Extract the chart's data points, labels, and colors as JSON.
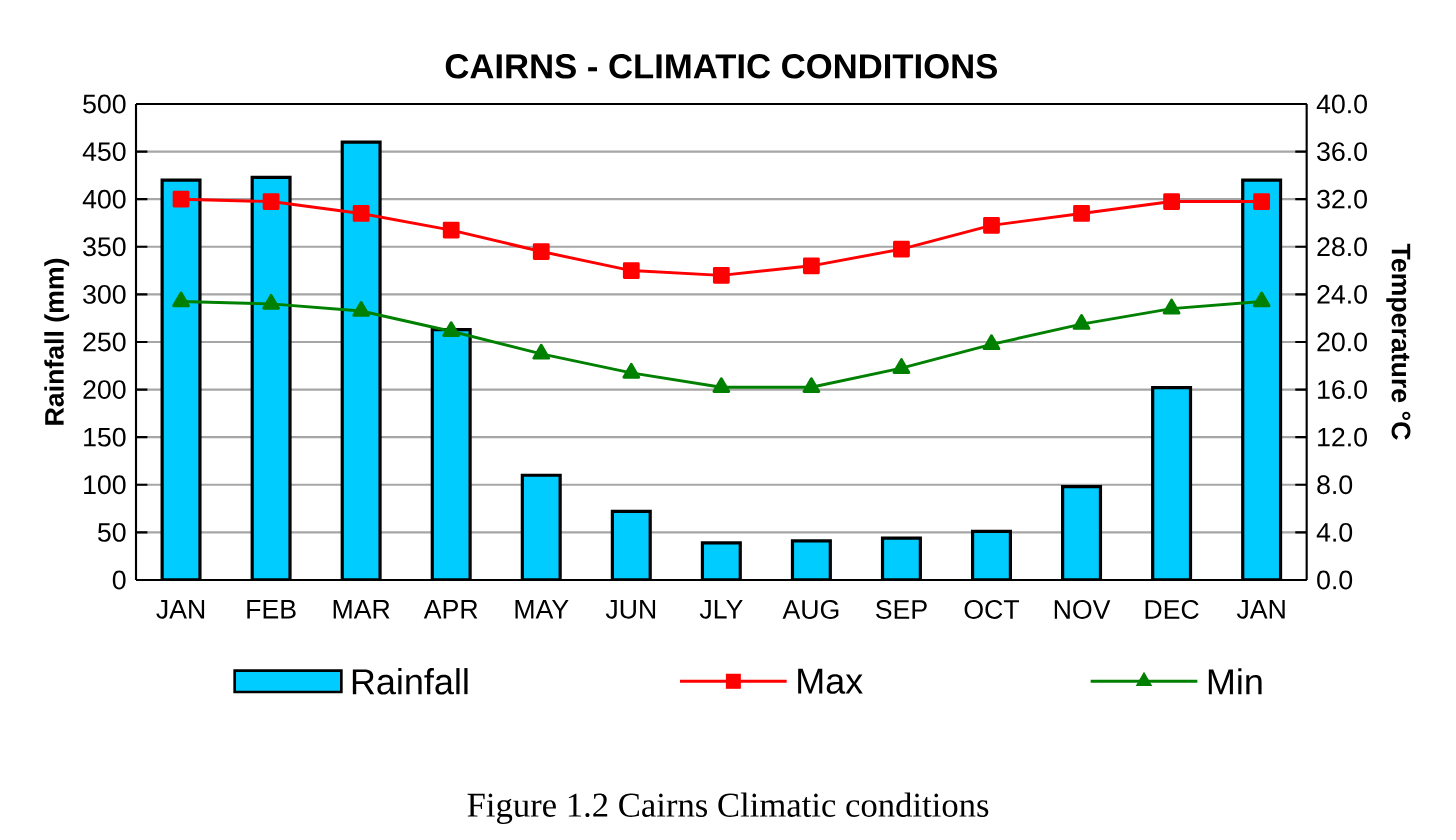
{
  "chart_data": {
    "type": "bar",
    "title": "CAIRNS - CLIMATIC CONDITIONS",
    "categories": [
      "JAN",
      "FEB",
      "MAR",
      "APR",
      "MAY",
      "JUN",
      "JLY",
      "AUG",
      "SEP",
      "OCT",
      "NOV",
      "DEC",
      "JAN"
    ],
    "series": [
      {
        "name": "Rainfall",
        "color": "#00ccff",
        "values": [
          420,
          423,
          460,
          263,
          110,
          72,
          39,
          41,
          44,
          51,
          98,
          202,
          420
        ]
      },
      {
        "name": "Max",
        "type": "line",
        "axis": "y2",
        "color": "#ff0000",
        "marker": "square",
        "values": [
          32.0,
          31.8,
          30.8,
          29.4,
          27.6,
          26.0,
          25.6,
          26.4,
          27.8,
          29.8,
          30.8,
          31.8,
          31.8
        ]
      },
      {
        "name": "Min",
        "type": "line",
        "axis": "y2",
        "color": "#008000",
        "marker": "triangle",
        "values": [
          23.4,
          23.2,
          22.6,
          20.9,
          19.0,
          17.4,
          16.2,
          16.2,
          17.8,
          19.8,
          21.5,
          22.8,
          23.4
        ]
      }
    ],
    "ylabel": "Rainfall (mm)",
    "y2label": "Temperature  °C",
    "ylim": [
      0,
      500
    ],
    "yticks": [
      0,
      50,
      100,
      150,
      200,
      250,
      300,
      350,
      400,
      450,
      500
    ],
    "y2lim": [
      0,
      40
    ],
    "y2ticks": [
      {
        "value": 0,
        "label": "0.0"
      },
      {
        "value": 4,
        "label": "4.0"
      },
      {
        "value": 8,
        "label": "8.0"
      },
      {
        "value": 12,
        "label": "12.0"
      },
      {
        "value": 16,
        "label": "16.0"
      },
      {
        "value": 20,
        "label": "20.0"
      },
      {
        "value": 24,
        "label": "24.0"
      },
      {
        "value": 28,
        "label": "28.0"
      },
      {
        "value": 32,
        "label": "32.0"
      },
      {
        "value": 36,
        "label": "36.0"
      },
      {
        "value": 40,
        "label": "40.0"
      }
    ],
    "grid": "y",
    "legend": "bottom",
    "annotations": [
      "Figure 1.2       Cairns Climatic conditions"
    ]
  }
}
